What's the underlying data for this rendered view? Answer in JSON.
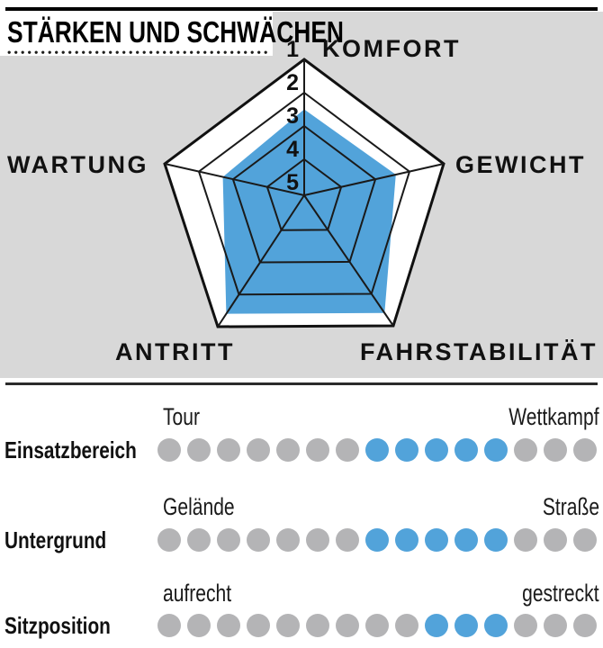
{
  "header": {
    "title": "STÄRKEN UND SCHWÄCHEN"
  },
  "colors": {
    "accent_blue": "#52a3da",
    "dot_gray": "#b4b4b6",
    "panel_gray": "#d8d8d8",
    "line_black": "#1a1a1a"
  },
  "chart_data": {
    "type": "radar",
    "title": "STÄRKEN UND SCHWÄCHEN",
    "axes": [
      "KOMFORT",
      "GEWICHT",
      "FAHRSTABILITÄT",
      "ANTRITT",
      "WARTUNG"
    ],
    "values": [
      2.5,
      2.4,
      1.4,
      1.4,
      2.7
    ],
    "scale": {
      "min": 1,
      "max": 5,
      "tick_labels": [
        "1",
        "2",
        "3",
        "4",
        "5"
      ],
      "note": "1 at outer pentagon edge, 5 at center; filled area = rating"
    },
    "rings": [
      1,
      2,
      3,
      4
    ],
    "fill_color": "#52a3da",
    "grid_color": "#1a1a1a",
    "legend_position": "none"
  },
  "ratings": {
    "rows": [
      {
        "label": "Einsatzbereich",
        "left": "Tour",
        "right": "Wettkampf",
        "dot_count": 15,
        "filled_from": 8,
        "filled_to": 12
      },
      {
        "label": "Untergrund",
        "left": "Gelände",
        "right": "Straße",
        "dot_count": 15,
        "filled_from": 8,
        "filled_to": 12
      },
      {
        "label": "Sitzposition",
        "left": "aufrecht",
        "right": "gestreckt",
        "dot_count": 15,
        "filled_from": 10,
        "filled_to": 12
      }
    ]
  }
}
